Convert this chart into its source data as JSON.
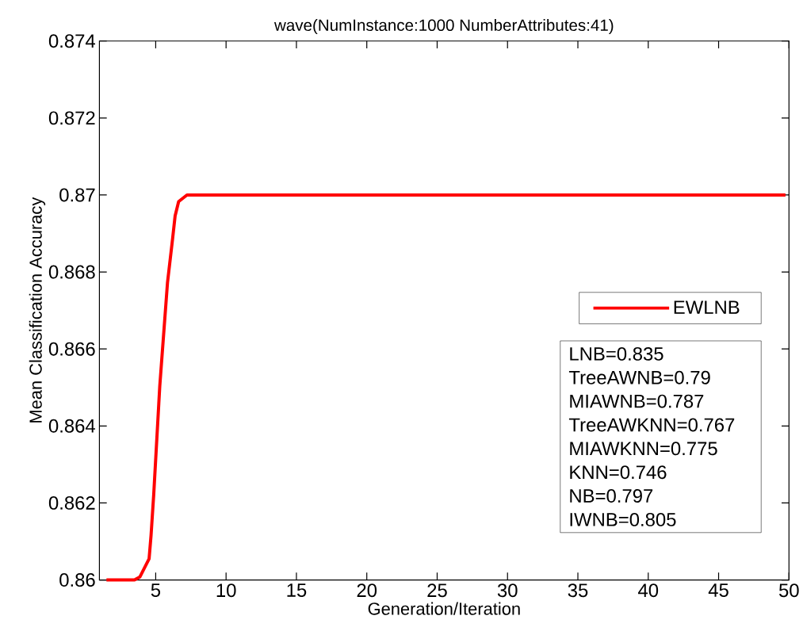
{
  "chart_data": {
    "type": "line",
    "title": "wave(NumInstance:1000 NumberAttributes:41)",
    "xlabel": "Generation/Iteration",
    "ylabel": "Mean Classification Accuracy",
    "x": [
      1.5,
      3.49,
      3.88,
      4.53,
      4.67,
      4.86,
      5.29,
      5.84,
      6.2,
      6.38,
      6.63,
      7.22,
      49.75
    ],
    "series": [
      {
        "name": "EWLNB",
        "color": "#ff0000",
        "values": [
          0.86,
          0.86,
          0.86008,
          0.86055,
          0.86116,
          0.86222,
          0.86504,
          0.86773,
          0.86886,
          0.86946,
          0.86983,
          0.87,
          0.87
        ]
      }
    ],
    "xlim": [
      1,
      50
    ],
    "ylim": [
      0.86,
      0.874
    ],
    "xticks": [
      5,
      10,
      15,
      20,
      25,
      30,
      35,
      40,
      45,
      50
    ],
    "yticks": [
      0.86,
      0.862,
      0.864,
      0.866,
      0.868,
      0.87,
      0.872,
      0.874
    ],
    "legend": "right",
    "grid": false,
    "marker": "none",
    "line_style": "solid",
    "annotations": [
      "LNB=0.835",
      "TreeAWNB=0.79",
      "MIAWNB=0.787",
      "TreeAWKNN=0.767",
      "MIAWKNN=0.775",
      "KNN=0.746",
      "NB=0.797",
      "IWNB=0.805"
    ]
  }
}
